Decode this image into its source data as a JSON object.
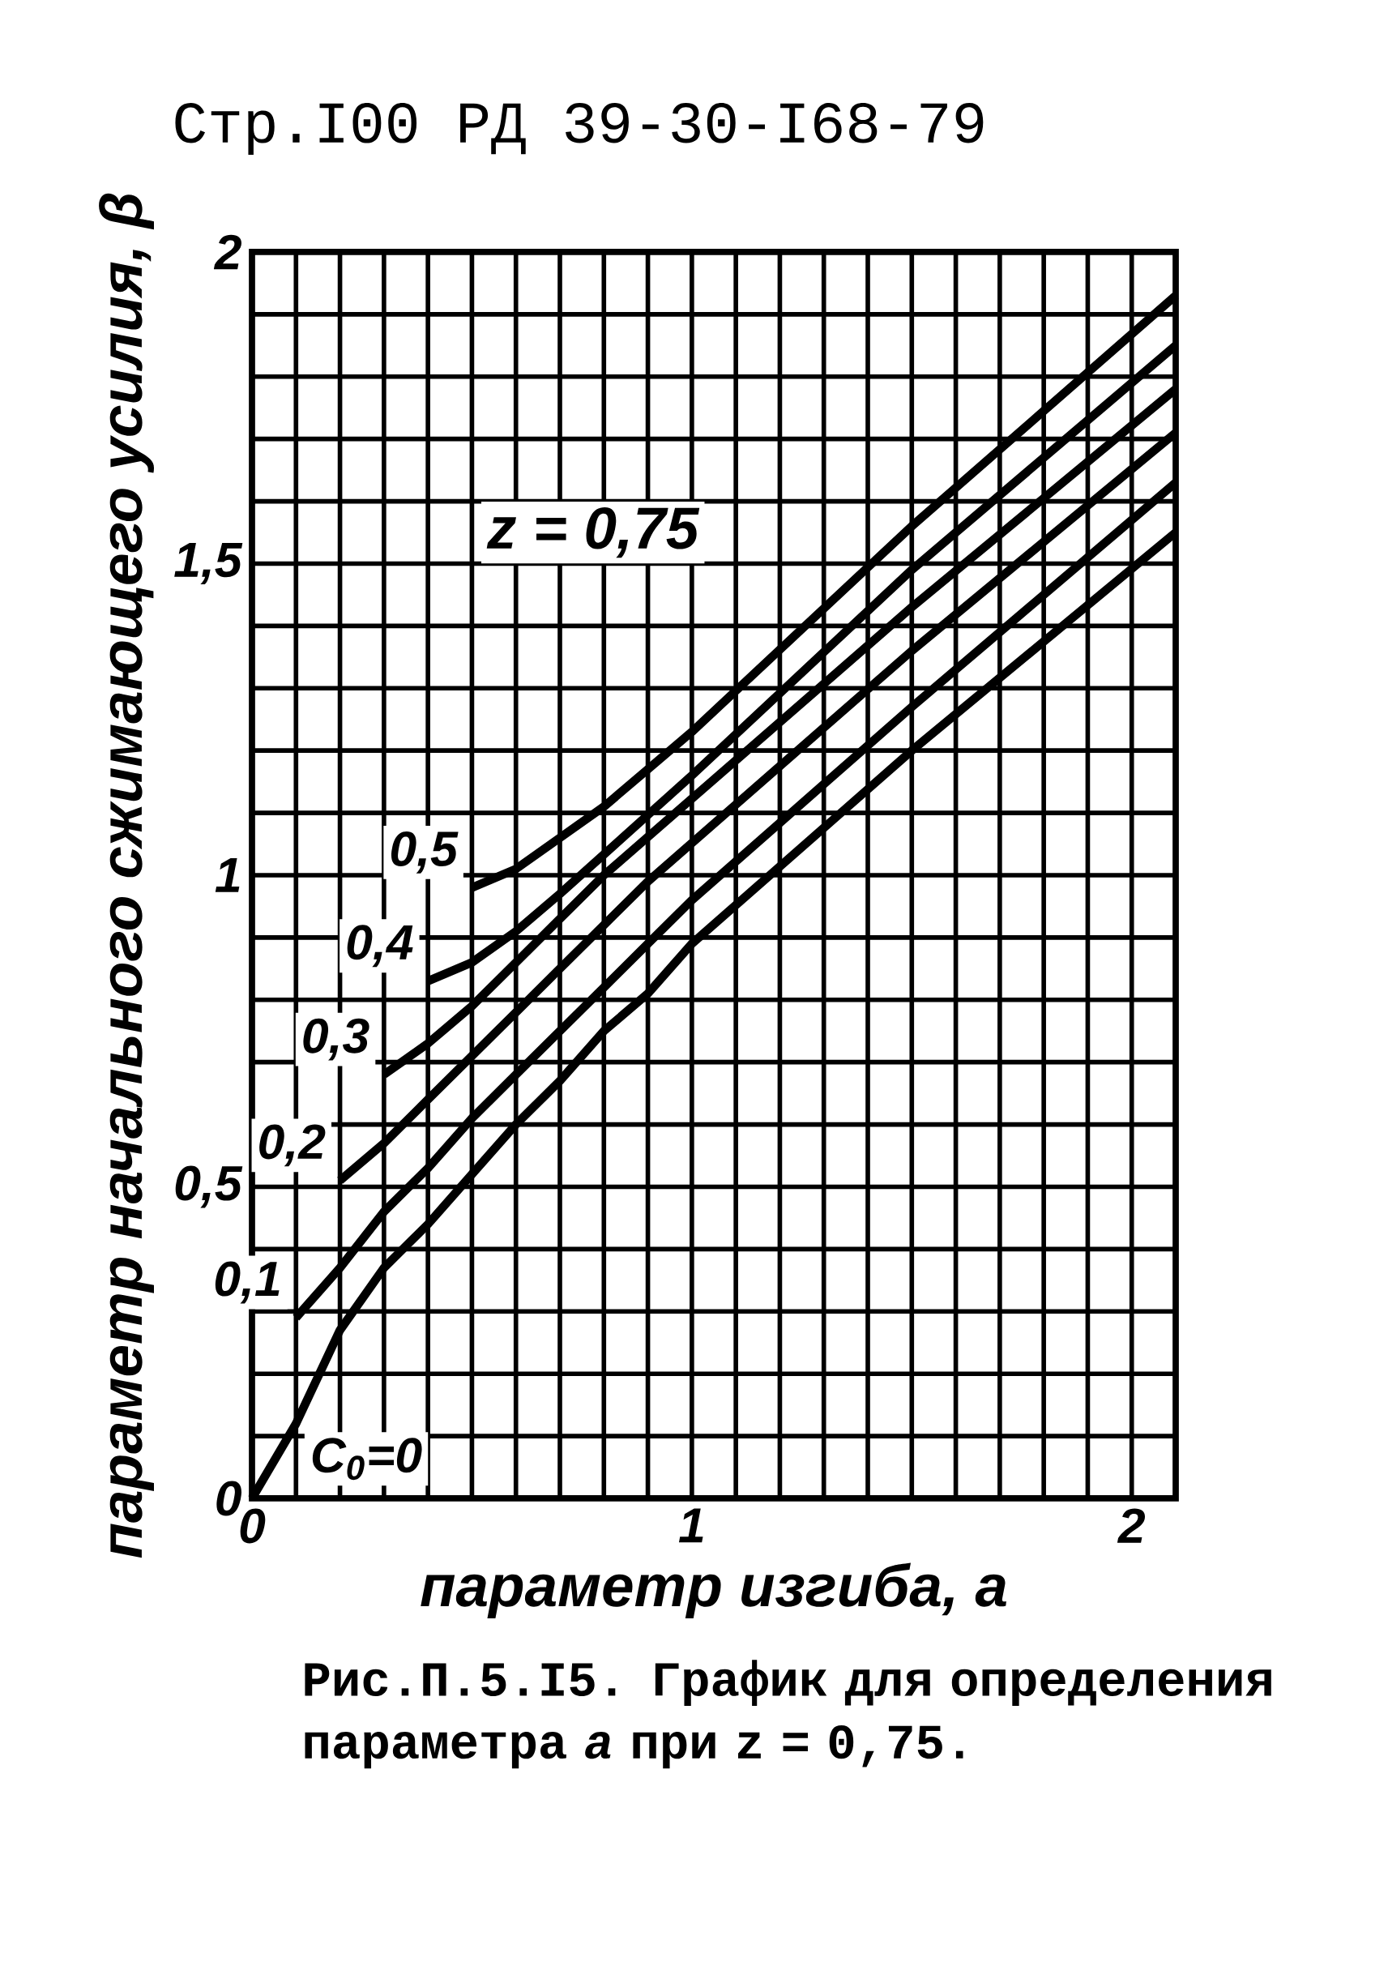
{
  "chart_data": {
    "type": "line",
    "xlabel": "параметр изгиба, *a*",
    "ylabel": "параметр начального сжимающего усилия, β",
    "annotations": [
      "Стр.I00 РД 39-30-I68-79",
      "z = 0,75",
      "Рис.П.5.I5. График для определения параметра *a* при z = 0,75."
    ],
    "series": [
      {
        "name": "C$_{0}$=0",
        "color": "#000000",
        "x": [
          0,
          0.1,
          0.2,
          0.3,
          0.4,
          0.5,
          0.6,
          0.7,
          0.8,
          0.9,
          1.0,
          1.5,
          2.1
        ],
        "values": [
          0,
          0.12,
          0.27,
          0.37,
          0.44,
          0.52,
          0.6,
          0.67,
          0.75,
          0.81,
          0.89,
          1.2,
          1.55
        ]
      },
      {
        "name": "0,1",
        "color": "#000000",
        "x": [
          0.1,
          0.2,
          0.3,
          0.4,
          0.5,
          0.6,
          0.7,
          0.8,
          0.9,
          1.0,
          1.5,
          2.1
        ],
        "values": [
          0.29,
          0.37,
          0.46,
          0.53,
          0.61,
          0.68,
          0.75,
          0.82,
          0.89,
          0.96,
          1.27,
          1.63
        ]
      },
      {
        "name": "0,2",
        "color": "#000000",
        "x": [
          0.2,
          0.3,
          0.4,
          0.5,
          0.6,
          0.7,
          0.8,
          0.9,
          1.5,
          2.1
        ],
        "values": [
          0.51,
          0.57,
          0.64,
          0.71,
          0.78,
          0.85,
          0.92,
          0.99,
          1.36,
          1.71
        ]
      },
      {
        "name": "0,3",
        "color": "#000000",
        "x": [
          0.3,
          0.4,
          0.5,
          0.6,
          0.7,
          0.8,
          1.5,
          2.1
        ],
        "values": [
          0.68,
          0.73,
          0.79,
          0.86,
          0.93,
          1.0,
          1.43,
          1.78
        ]
      },
      {
        "name": "0,4",
        "color": "#000000",
        "x": [
          0.4,
          0.5,
          0.6,
          0.7,
          1.0,
          1.5,
          2.1
        ],
        "values": [
          0.83,
          0.86,
          0.91,
          0.97,
          1.16,
          1.49,
          1.85
        ]
      },
      {
        "name": "0,5",
        "color": "#000000",
        "x": [
          0.5,
          0.6,
          0.7,
          0.8,
          0.9,
          1.0,
          1.5,
          2.1
        ],
        "values": [
          0.98,
          1.01,
          1.06,
          1.11,
          1.17,
          1.23,
          1.56,
          1.93
        ]
      }
    ],
    "xlim": [
      0,
      2.1
    ],
    "ylim": [
      0,
      2
    ],
    "xticks": [
      0,
      {
        "value": 0.1,
        "label": null
      },
      {
        "value": 0.2,
        "label": null
      },
      {
        "value": 0.3,
        "label": null
      },
      {
        "value": 0.4,
        "label": null
      },
      {
        "value": 0.5,
        "label": null
      },
      {
        "value": 0.6,
        "label": null
      },
      {
        "value": 0.7,
        "label": null
      },
      {
        "value": 0.8,
        "label": null
      },
      {
        "value": 0.9,
        "label": null
      },
      1,
      {
        "value": 1.1,
        "label": null
      },
      {
        "value": 1.2,
        "label": null
      },
      {
        "value": 1.3,
        "label": null
      },
      {
        "value": 1.4,
        "label": null
      },
      {
        "value": 1.5,
        "label": null
      },
      {
        "value": 1.6,
        "label": null
      },
      {
        "value": 1.7,
        "label": null
      },
      {
        "value": 1.8,
        "label": null
      },
      {
        "value": 1.9,
        "label": null
      },
      2,
      {
        "value": 2.1,
        "label": null
      }
    ],
    "yticks": [
      0,
      {
        "value": 0.1,
        "label": null
      },
      {
        "value": 0.2,
        "label": null
      },
      {
        "value": 0.3,
        "label": null
      },
      {
        "value": 0.4,
        "label": null
      },
      {
        "value": 0.5,
        "label": "0,5"
      },
      {
        "value": 0.6,
        "label": null
      },
      {
        "value": 0.7,
        "label": null
      },
      {
        "value": 0.8,
        "label": null
      },
      {
        "value": 0.9,
        "label": null
      },
      1,
      {
        "value": 1.1,
        "label": null
      },
      {
        "value": 1.2,
        "label": null
      },
      {
        "value": 1.3,
        "label": null
      },
      {
        "value": 1.4,
        "label": null
      },
      {
        "value": 1.5,
        "label": "1,5"
      },
      {
        "value": 1.6,
        "label": null
      },
      {
        "value": 1.7,
        "label": null
      },
      {
        "value": 1.8,
        "label": null
      },
      {
        "value": 1.9,
        "label": null
      },
      2
    ],
    "grid": true,
    "legend": false,
    "marker": "none",
    "line_style": "solid"
  }
}
